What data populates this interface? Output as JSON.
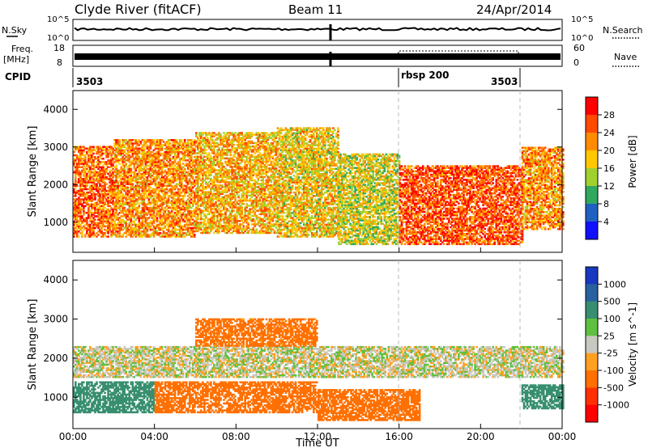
{
  "header": {
    "station": "Clyde River (fitACF)",
    "beam": "Beam 11",
    "date": "24/Apr/2014"
  },
  "noise_panel": {
    "left_label": "N.Sky",
    "right_label": "N.Search",
    "tick_labels": [
      "10^5",
      "10^0"
    ]
  },
  "freq_panel": {
    "left_label": "Freq.",
    "left_units": "[MHz]",
    "left_ticks": [
      "18",
      "8"
    ],
    "right_ticks": [
      "60",
      "0"
    ],
    "right_label": "Nave"
  },
  "cpid_row": {
    "label": "CPID",
    "segments": [
      "3503",
      "rbsp 200",
      "3503"
    ]
  },
  "x_axis": {
    "label": "Time UT",
    "ticks": [
      "00:00",
      "04:00",
      "08:00",
      "12:00",
      "16:00",
      "20:00",
      "00:00"
    ]
  },
  "power_colorbar": {
    "label": "Power [dB]",
    "ticks": [
      "28",
      "24",
      "20",
      "16",
      "12",
      "8",
      "4"
    ],
    "colors": [
      "#ff0000",
      "#ff4a00",
      "#ff8c00",
      "#ffc800",
      "#a0d030",
      "#30a860",
      "#2060c0",
      "#1010ff"
    ]
  },
  "velocity_colorbar": {
    "label": "Velocity [m s^-1]",
    "ticks": [
      "1000",
      "500",
      "100",
      "25",
      "-25",
      "-100",
      "-500",
      "-1000"
    ],
    "colors": [
      "#1838c0",
      "#2860a0",
      "#388f70",
      "#60c040",
      "#c8c8c0",
      "#ffa020",
      "#ff7000",
      "#ff3000",
      "#ff0000"
    ]
  },
  "chart_data": [
    {
      "type": "heatmap",
      "title": "",
      "xlabel": "Time UT",
      "ylabel": "Slant Range [km]",
      "xlim": [
        "00:00",
        "24:00"
      ],
      "ylim": [
        200,
        4500
      ],
      "y_ticks": [
        "1000",
        "2000",
        "3000",
        "4000"
      ],
      "colorbar": "Power [dB]",
      "range_bands": [
        {
          "start": "00:00",
          "end": "02:00",
          "low": 600,
          "high": 3000,
          "value": 22
        },
        {
          "start": "02:00",
          "end": "06:00",
          "low": 600,
          "high": 3200,
          "value": 20
        },
        {
          "start": "06:00",
          "end": "10:00",
          "low": 700,
          "high": 3400,
          "value": 18
        },
        {
          "start": "10:00",
          "end": "13:00",
          "low": 600,
          "high": 3500,
          "value": 16
        },
        {
          "start": "13:00",
          "end": "16:00",
          "low": 400,
          "high": 2800,
          "value": 14
        },
        {
          "start": "16:00",
          "end": "22:00",
          "low": 400,
          "high": 2500,
          "value": 24
        },
        {
          "start": "22:00",
          "end": "24:00",
          "low": 800,
          "high": 3000,
          "value": 20
        }
      ]
    },
    {
      "type": "heatmap",
      "title": "",
      "xlabel": "Time UT",
      "ylabel": "Slant Range [km]",
      "xlim": [
        "00:00",
        "24:00"
      ],
      "ylim": [
        200,
        4500
      ],
      "y_ticks": [
        "1000",
        "2000",
        "3000",
        "4000"
      ],
      "colorbar": "Velocity [m s^-1]",
      "range_bands": [
        {
          "start": "00:00",
          "end": "04:00",
          "low": 600,
          "high": 1400,
          "value": 300
        },
        {
          "start": "04:00",
          "end": "12:00",
          "low": 600,
          "high": 1400,
          "value": -200
        },
        {
          "start": "00:00",
          "end": "24:00",
          "low": 1500,
          "high": 2300,
          "value": 0
        },
        {
          "start": "06:00",
          "end": "12:00",
          "low": 2300,
          "high": 3000,
          "value": -150
        },
        {
          "start": "12:00",
          "end": "17:00",
          "low": 400,
          "high": 1200,
          "value": -250
        },
        {
          "start": "22:00",
          "end": "24:00",
          "low": 700,
          "high": 1300,
          "value": 200
        }
      ]
    }
  ]
}
